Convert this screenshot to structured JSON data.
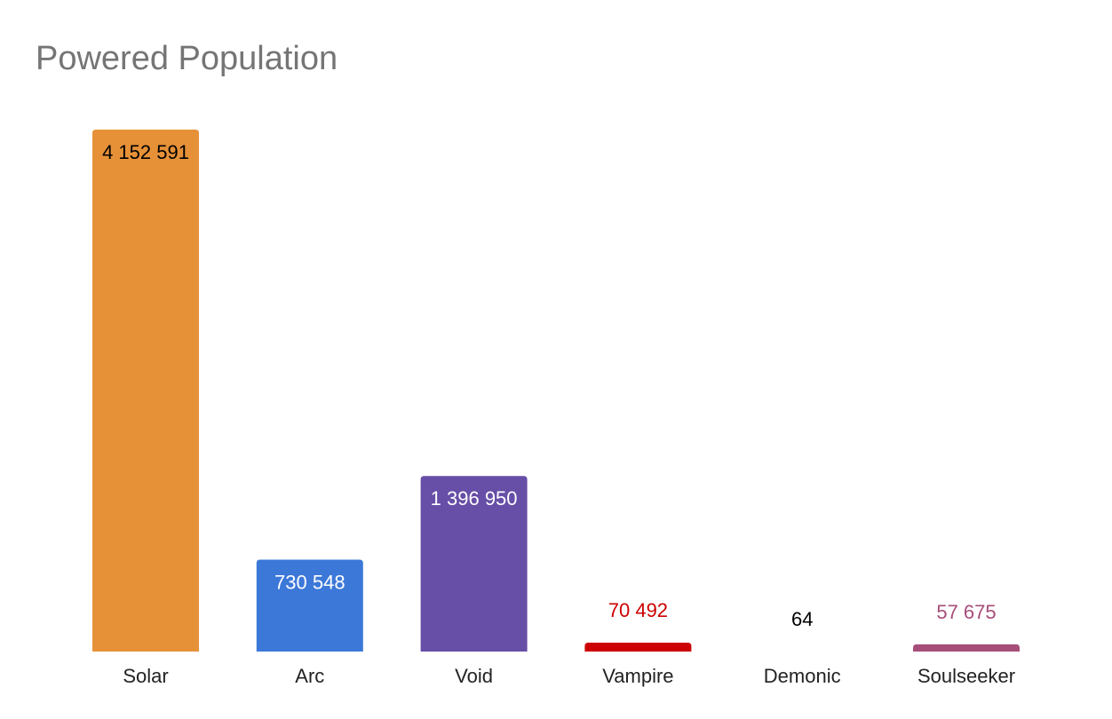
{
  "chart_data": {
    "type": "bar",
    "title": "Powered Population",
    "xlabel": "",
    "ylabel": "",
    "categories": [
      "Solar",
      "Arc",
      "Void",
      "Vampire",
      "Demonic",
      "Soulseeker"
    ],
    "values": [
      4152591,
      730548,
      1396950,
      70492,
      64,
      57675
    ],
    "value_labels": [
      "4 152 591",
      "730 548",
      "1 396 950",
      "70 492",
      "64",
      "57 675"
    ],
    "colors": [
      "#E69138",
      "#3C78D8",
      "#674EA7",
      "#CC0000",
      "#000000",
      "#A64D79"
    ],
    "label_colors": [
      "#000000",
      "#ffffff",
      "#ffffff",
      "#CC0000",
      "#000000",
      "#A64D79"
    ],
    "ylim": [
      0,
      4152591
    ],
    "grid": false,
    "legend": "none"
  }
}
